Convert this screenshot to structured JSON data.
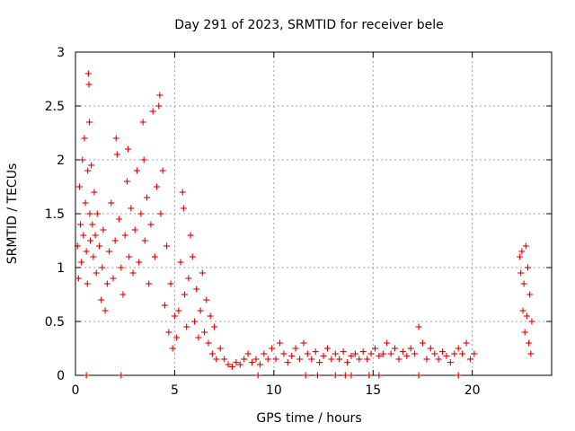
{
  "chart_data": {
    "type": "scatter",
    "title": "Day 291 of 2023, SRMTID for receiver bele",
    "xlabel": "GPS time / hours",
    "ylabel": "SRMTID / TECUs",
    "xlim": [
      0,
      24
    ],
    "ylim": [
      0,
      3
    ],
    "xticks": [
      0,
      5,
      10,
      15,
      20
    ],
    "xtick_labels": [
      "0",
      "5",
      "10",
      "15",
      "20"
    ],
    "yticks": [
      0,
      0.5,
      1,
      1.5,
      2,
      2.5,
      3
    ],
    "ytick_labels": [
      "0",
      "0.5",
      "1",
      "1.5",
      "2",
      "2.5",
      "3"
    ],
    "grid": true,
    "marker": "plus",
    "color": "#e00000",
    "series": [
      {
        "name": "SRMTID",
        "points": [
          [
            0.1,
            1.2
          ],
          [
            0.15,
            0.9
          ],
          [
            0.2,
            1.75
          ],
          [
            0.25,
            1.4
          ],
          [
            0.3,
            1.05
          ],
          [
            0.35,
            2.0
          ],
          [
            0.4,
            1.3
          ],
          [
            0.45,
            2.2
          ],
          [
            0.5,
            1.6
          ],
          [
            0.55,
            1.15
          ],
          [
            0.6,
            0.85
          ],
          [
            0.62,
            1.9
          ],
          [
            0.65,
            2.8
          ],
          [
            0.68,
            2.7
          ],
          [
            0.7,
            2.35
          ],
          [
            0.72,
            1.5
          ],
          [
            0.75,
            1.25
          ],
          [
            0.8,
            1.95
          ],
          [
            0.85,
            1.4
          ],
          [
            0.9,
            1.1
          ],
          [
            0.95,
            1.7
          ],
          [
            1.0,
            1.3
          ],
          [
            1.05,
            0.95
          ],
          [
            1.1,
            1.5
          ],
          [
            1.2,
            1.2
          ],
          [
            1.3,
            0.7
          ],
          [
            1.35,
            1.0
          ],
          [
            1.4,
            1.35
          ],
          [
            1.5,
            0.6
          ],
          [
            1.6,
            0.85
          ],
          [
            1.7,
            1.15
          ],
          [
            1.8,
            1.6
          ],
          [
            1.9,
            0.9
          ],
          [
            2.0,
            1.25
          ],
          [
            2.05,
            2.2
          ],
          [
            2.1,
            2.05
          ],
          [
            2.2,
            1.45
          ],
          [
            2.3,
            1.0
          ],
          [
            2.4,
            0.75
          ],
          [
            2.5,
            1.3
          ],
          [
            2.6,
            1.8
          ],
          [
            2.65,
            2.1
          ],
          [
            2.7,
            1.1
          ],
          [
            2.8,
            1.55
          ],
          [
            2.9,
            0.95
          ],
          [
            3.0,
            1.35
          ],
          [
            3.1,
            1.9
          ],
          [
            3.2,
            1.05
          ],
          [
            3.3,
            1.5
          ],
          [
            3.4,
            2.35
          ],
          [
            3.45,
            2.0
          ],
          [
            3.5,
            1.25
          ],
          [
            3.6,
            1.65
          ],
          [
            3.7,
            0.85
          ],
          [
            3.8,
            1.4
          ],
          [
            3.9,
            2.45
          ],
          [
            4.0,
            1.1
          ],
          [
            4.1,
            1.75
          ],
          [
            4.2,
            2.5
          ],
          [
            4.25,
            2.6
          ],
          [
            4.3,
            1.5
          ],
          [
            4.4,
            1.9
          ],
          [
            4.5,
            0.65
          ],
          [
            4.6,
            1.2
          ],
          [
            4.7,
            0.4
          ],
          [
            4.8,
            0.85
          ],
          [
            4.9,
            0.25
          ],
          [
            5.0,
            0.55
          ],
          [
            5.1,
            0.35
          ],
          [
            5.2,
            0.6
          ],
          [
            5.3,
            1.05
          ],
          [
            5.4,
            1.7
          ],
          [
            5.45,
            1.55
          ],
          [
            5.5,
            0.75
          ],
          [
            5.6,
            0.45
          ],
          [
            5.7,
            0.9
          ],
          [
            5.8,
            1.3
          ],
          [
            5.9,
            1.1
          ],
          [
            6.0,
            0.5
          ],
          [
            6.1,
            0.8
          ],
          [
            6.2,
            0.35
          ],
          [
            6.3,
            0.6
          ],
          [
            6.4,
            0.95
          ],
          [
            6.5,
            0.4
          ],
          [
            6.6,
            0.7
          ],
          [
            6.7,
            0.3
          ],
          [
            6.8,
            0.55
          ],
          [
            6.9,
            0.2
          ],
          [
            7.0,
            0.45
          ],
          [
            7.1,
            0.15
          ],
          [
            7.3,
            0.25
          ],
          [
            7.5,
            0.15
          ],
          [
            7.7,
            0.1
          ],
          [
            7.9,
            0.08
          ],
          [
            8.1,
            0.12
          ],
          [
            8.3,
            0.1
          ],
          [
            8.5,
            0.15
          ],
          [
            8.7,
            0.2
          ],
          [
            8.9,
            0.12
          ],
          [
            9.1,
            0.15
          ],
          [
            9.3,
            0.1
          ],
          [
            9.5,
            0.2
          ],
          [
            9.7,
            0.15
          ],
          [
            9.9,
            0.25
          ],
          [
            10.1,
            0.15
          ],
          [
            10.3,
            0.3
          ],
          [
            10.5,
            0.2
          ],
          [
            10.7,
            0.12
          ],
          [
            10.9,
            0.18
          ],
          [
            11.1,
            0.25
          ],
          [
            11.3,
            0.15
          ],
          [
            11.5,
            0.3
          ],
          [
            11.7,
            0.2
          ],
          [
            11.9,
            0.15
          ],
          [
            12.1,
            0.22
          ],
          [
            12.3,
            0.12
          ],
          [
            12.5,
            0.18
          ],
          [
            12.7,
            0.25
          ],
          [
            12.9,
            0.15
          ],
          [
            13.1,
            0.2
          ],
          [
            13.3,
            0.15
          ],
          [
            13.5,
            0.22
          ],
          [
            13.7,
            0.12
          ],
          [
            13.9,
            0.18
          ],
          [
            14.1,
            0.2
          ],
          [
            14.3,
            0.15
          ],
          [
            14.5,
            0.22
          ],
          [
            14.7,
            0.15
          ],
          [
            14.9,
            0.2
          ],
          [
            15.1,
            0.25
          ],
          [
            15.3,
            0.18
          ],
          [
            15.5,
            0.2
          ],
          [
            15.7,
            0.3
          ],
          [
            15.9,
            0.2
          ],
          [
            16.1,
            0.25
          ],
          [
            16.3,
            0.15
          ],
          [
            16.5,
            0.22
          ],
          [
            16.7,
            0.18
          ],
          [
            16.9,
            0.25
          ],
          [
            17.1,
            0.2
          ],
          [
            17.3,
            0.45
          ],
          [
            17.5,
            0.3
          ],
          [
            17.7,
            0.15
          ],
          [
            17.9,
            0.25
          ],
          [
            18.1,
            0.2
          ],
          [
            18.3,
            0.15
          ],
          [
            18.5,
            0.22
          ],
          [
            18.7,
            0.18
          ],
          [
            18.9,
            0.12
          ],
          [
            19.1,
            0.2
          ],
          [
            19.3,
            0.25
          ],
          [
            19.5,
            0.2
          ],
          [
            19.7,
            0.3
          ],
          [
            19.9,
            0.15
          ],
          [
            20.1,
            0.2
          ],
          [
            22.4,
            1.1
          ],
          [
            22.45,
            0.95
          ],
          [
            22.5,
            1.15
          ],
          [
            22.55,
            0.6
          ],
          [
            22.6,
            0.85
          ],
          [
            22.65,
            0.4
          ],
          [
            22.7,
            1.2
          ],
          [
            22.75,
            0.55
          ],
          [
            22.8,
            1.0
          ],
          [
            22.85,
            0.3
          ],
          [
            22.9,
            0.75
          ],
          [
            22.95,
            0.2
          ],
          [
            23.0,
            0.5
          ]
        ]
      }
    ],
    "zero_markers_x": [
      0.55,
      2.3,
      9.2,
      11.6,
      12.2,
      13.1,
      13.6,
      13.9,
      14.8,
      15.3,
      17.3,
      19.3
    ]
  }
}
